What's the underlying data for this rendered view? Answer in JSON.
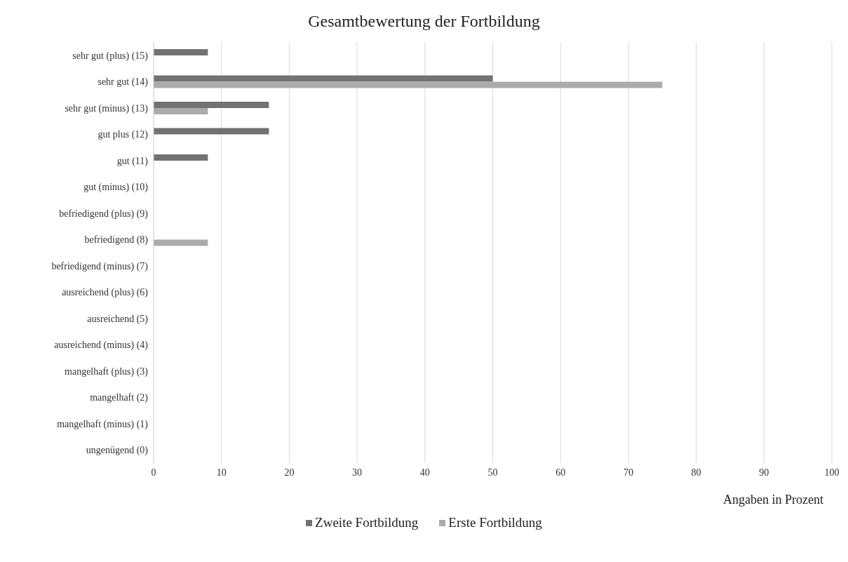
{
  "chart_data": {
    "type": "bar",
    "orientation": "horizontal",
    "title": "Gesamtbewertung der Fortbildung",
    "xlabel": "Angaben in Prozent",
    "categories": [
      "sehr gut (plus) (15)",
      "sehr gut (14)",
      "sehr gut (minus) (13)",
      "gut plus (12)",
      "gut (11)",
      "gut (minus) (10)",
      "befriedigend (plus) (9)",
      "befriedigend (8)",
      "befriedigend (minus) (7)",
      "ausreichend (plus) (6)",
      "ausreichend (5)",
      "ausreichend (minus) (4)",
      "mangelhaft (plus) (3)",
      "mangelhaft (2)",
      "mangelhaft (minus) (1)",
      "ungenügend (0)"
    ],
    "series": [
      {
        "name": "Zweite Fortbildung",
        "color": "#727272",
        "values": [
          8,
          50,
          17,
          17,
          8,
          0,
          0,
          0,
          0,
          0,
          0,
          0,
          0,
          0,
          0,
          0
        ]
      },
      {
        "name": "Erste Fortbildung",
        "color": "#ababab",
        "values": [
          0,
          75,
          8,
          0,
          0,
          0,
          0,
          8,
          0,
          0,
          0,
          0,
          0,
          0,
          0,
          0
        ]
      }
    ],
    "xlim": [
      0,
      100
    ],
    "xticks": [
      0,
      10,
      20,
      30,
      40,
      50,
      60,
      70,
      80,
      90,
      100
    ],
    "grid": "x",
    "legend": "bottom"
  }
}
